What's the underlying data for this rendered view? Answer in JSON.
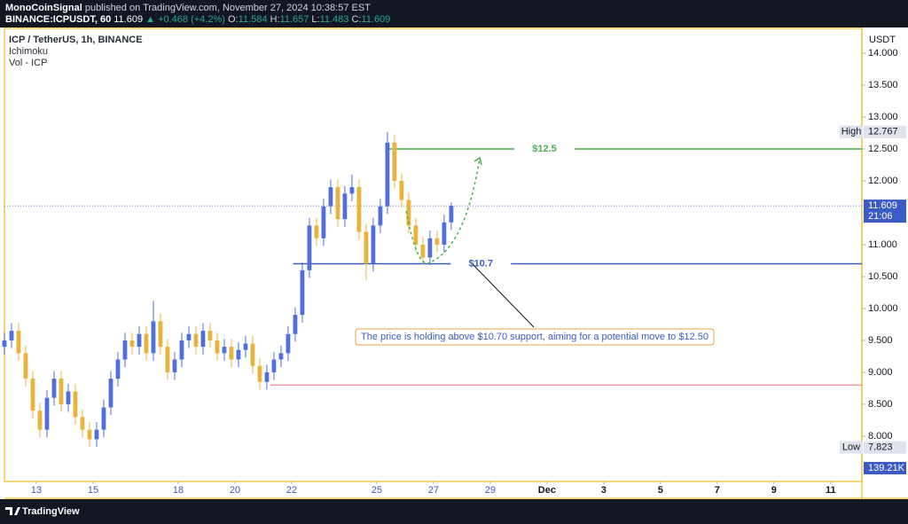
{
  "header": {
    "author": "MonoCoinSignal",
    "published": "published on TradingView.com, November 27, 2024 10:38:57 EST",
    "symbol": "BINANCE:ICPUSDT, 60",
    "last": "11.609",
    "change": "▲ +0.468 (+4.2%)",
    "ohlc": [
      {
        "key": "O:",
        "value": "11.584"
      },
      {
        "key": "H:",
        "value": "11.657"
      },
      {
        "key": "L:",
        "value": "11.483"
      },
      {
        "key": "C:",
        "value": "11.609"
      }
    ]
  },
  "footer": {
    "brand": "TradingView"
  },
  "chart_data": {
    "type": "candlestick",
    "legend": [
      "ICP / TetherUS, 1h, BINANCE",
      "Ichimoku",
      "Vol - ICP"
    ],
    "axis_unit": "USDT",
    "up_color": "#4f6fd9",
    "down_color": "#e8b33c",
    "x": [
      11.875,
      12.125,
      12.375,
      12.625,
      12.875,
      13.125,
      13.375,
      13.625,
      13.875,
      14.125,
      14.375,
      14.625,
      14.875,
      15.125,
      15.375,
      15.625,
      15.875,
      16.125,
      16.375,
      16.625,
      16.875,
      17.125,
      17.375,
      17.625,
      17.875,
      18.125,
      18.375,
      18.625,
      18.875,
      19.125,
      19.375,
      19.625,
      19.875,
      20.125,
      20.375,
      20.625,
      20.875,
      21.125,
      21.375,
      21.625,
      21.875,
      22.125,
      22.375,
      22.625,
      22.875,
      23.125,
      23.375,
      23.625,
      23.875,
      24.125,
      24.375,
      24.625,
      24.875,
      25.125,
      25.375,
      25.625,
      25.875,
      26.125,
      26.375,
      26.625,
      26.875,
      27.125,
      27.375,
      27.625
    ],
    "open": [
      9.4,
      9.5,
      9.65,
      9.3,
      8.9,
      8.4,
      8.1,
      8.6,
      8.9,
      8.5,
      8.7,
      8.3,
      8.1,
      7.95,
      8.1,
      8.45,
      8.9,
      9.2,
      9.5,
      9.4,
      9.6,
      9.3,
      9.8,
      9.4,
      9.0,
      9.2,
      9.5,
      9.6,
      9.4,
      9.65,
      9.5,
      9.3,
      9.4,
      9.2,
      9.35,
      9.45,
      9.1,
      8.85,
      9.0,
      9.2,
      9.3,
      9.6,
      9.9,
      10.6,
      11.3,
      11.1,
      11.6,
      11.9,
      11.4,
      11.8,
      11.9,
      11.2,
      10.7,
      11.3,
      11.6,
      12.6,
      12.0,
      11.7,
      11.3,
      11.0,
      10.8,
      11.1,
      11.0,
      11.35
    ],
    "high": [
      9.62,
      9.77,
      9.77,
      9.42,
      9.02,
      8.52,
      8.72,
      9.02,
      9.02,
      8.82,
      8.82,
      8.42,
      8.22,
      8.22,
      8.57,
      9.02,
      9.32,
      9.62,
      9.62,
      9.72,
      9.72,
      10.12,
      9.92,
      9.52,
      9.32,
      9.62,
      9.72,
      9.72,
      9.77,
      9.77,
      9.62,
      9.52,
      9.52,
      9.47,
      9.57,
      9.57,
      9.22,
      9.12,
      9.32,
      9.42,
      9.72,
      10.02,
      10.72,
      11.42,
      11.42,
      11.72,
      12.02,
      12.02,
      11.92,
      12.1,
      12.02,
      11.32,
      11.42,
      11.72,
      12.767,
      12.72,
      12.12,
      11.82,
      11.42,
      11.12,
      11.22,
      11.22,
      11.47,
      11.66
    ],
    "low": [
      9.28,
      9.38,
      9.18,
      8.78,
      8.28,
      7.98,
      7.98,
      8.48,
      8.38,
      8.38,
      8.18,
      7.98,
      7.83,
      7.83,
      7.98,
      8.33,
      8.78,
      9.08,
      9.28,
      9.28,
      9.18,
      9.18,
      9.28,
      8.88,
      8.88,
      9.08,
      9.38,
      9.28,
      9.28,
      9.38,
      9.18,
      9.18,
      9.08,
      9.08,
      9.23,
      8.98,
      8.73,
      8.73,
      8.88,
      9.08,
      9.18,
      9.48,
      9.78,
      10.48,
      10.98,
      10.98,
      11.48,
      11.28,
      11.28,
      11.68,
      11.08,
      10.45,
      10.58,
      11.18,
      11.48,
      11.88,
      11.58,
      11.18,
      10.88,
      10.68,
      10.68,
      10.88,
      10.88,
      11.23
    ],
    "close": [
      9.5,
      9.65,
      9.3,
      8.9,
      8.4,
      8.1,
      8.6,
      8.9,
      8.5,
      8.7,
      8.3,
      8.1,
      7.95,
      8.1,
      8.45,
      8.9,
      9.2,
      9.5,
      9.4,
      9.6,
      9.3,
      9.8,
      9.4,
      9.0,
      9.2,
      9.5,
      9.6,
      9.4,
      9.65,
      9.5,
      9.3,
      9.4,
      9.2,
      9.35,
      9.45,
      9.1,
      8.85,
      9.0,
      9.2,
      9.3,
      9.6,
      9.9,
      10.6,
      11.3,
      11.1,
      11.6,
      11.9,
      11.4,
      11.8,
      11.9,
      11.2,
      10.7,
      11.3,
      11.6,
      12.6,
      12.0,
      11.7,
      11.3,
      11.0,
      10.8,
      11.1,
      11.0,
      11.35,
      11.609
    ],
    "xlim": [
      11.875,
      42.1
    ],
    "xticks": [
      13,
      15,
      18,
      20,
      22,
      25,
      27,
      29,
      {
        "value": 31,
        "label": "Dec"
      },
      {
        "value": 33,
        "label": "3"
      },
      {
        "value": 35,
        "label": "5"
      },
      {
        "value": 37,
        "label": "7"
      },
      {
        "value": 39,
        "label": "9"
      },
      {
        "value": 41,
        "label": "11"
      }
    ],
    "ylim": [
      7.29,
      14.375
    ],
    "yticks": [
      {
        "value": 8,
        "label": "8.000"
      },
      {
        "value": 8.5,
        "label": "8.500"
      },
      {
        "value": 9,
        "label": "9.000"
      },
      {
        "value": 9.5,
        "label": "9.500"
      },
      {
        "value": 10,
        "label": "10.000"
      },
      {
        "value": 10.5,
        "label": "10.500"
      },
      {
        "value": 11,
        "label": "11.000"
      },
      {
        "value": 11.5,
        "label": "11.500"
      },
      {
        "value": 12,
        "label": "12.000"
      },
      {
        "value": 12.5,
        "label": "12.500"
      },
      {
        "value": 13,
        "label": "13.000"
      },
      {
        "value": 13.5,
        "label": "13.500"
      },
      {
        "value": 14,
        "label": "14.000"
      }
    ],
    "levels": [
      {
        "value": 12.5,
        "from": 25.4,
        "label": "$12.5",
        "color": "#4caf50"
      },
      {
        "value": 10.7,
        "from": 22.05,
        "label": "$10.7",
        "color": "#3b5bc4"
      },
      {
        "value": 8.8,
        "from": 21.25,
        "color": "#e57373"
      }
    ],
    "high_marker": {
      "label": "High",
      "value": 12.767
    },
    "low_marker": {
      "label": "Low",
      "value": 7.823
    },
    "countdown": "21:06",
    "volume_label": "139.21K",
    "annotation": "The price is holding above $10.70 support, aiming for a potential move to $12.50"
  }
}
